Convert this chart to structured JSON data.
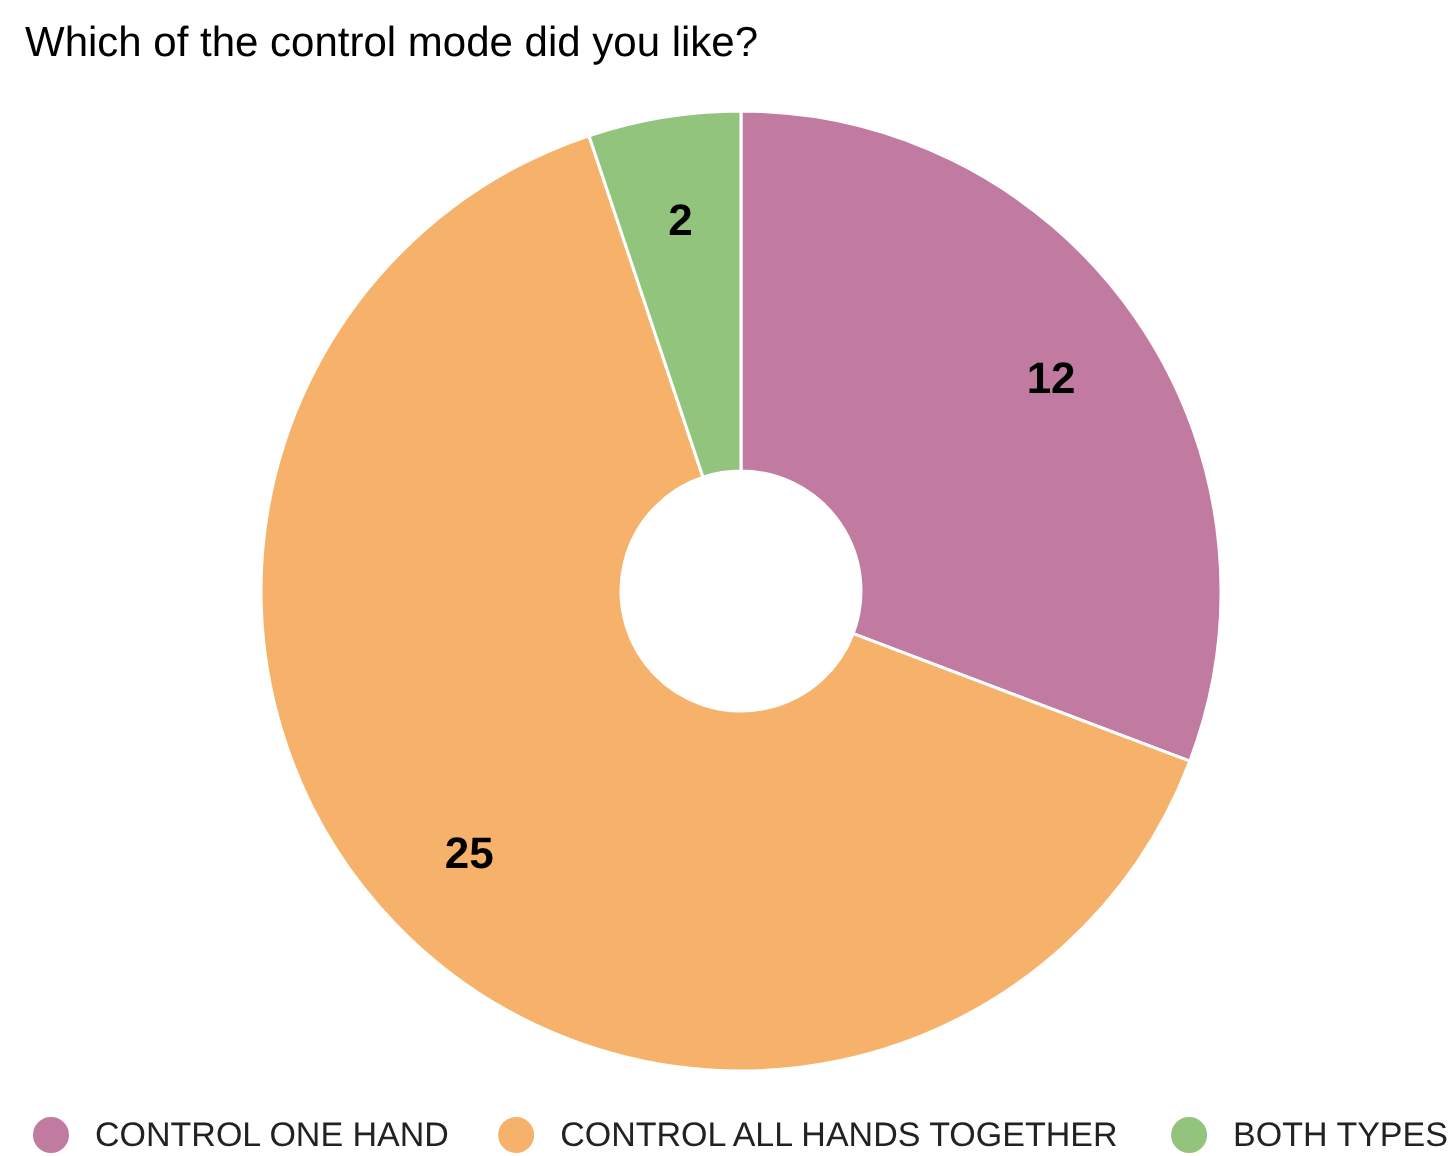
{
  "chart_data": {
    "type": "donut",
    "title": "Which of the control mode did you like?",
    "categories": [
      "CONTROL ONE HAND",
      "CONTROL ALL HANDS TOGETHER",
      "BOTH TYPES"
    ],
    "values": [
      12,
      25,
      2
    ],
    "colors": [
      "#c27ba0",
      "#f6b26b",
      "#93c47d"
    ],
    "data_labels": true,
    "legend": "bottom"
  }
}
